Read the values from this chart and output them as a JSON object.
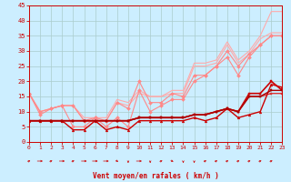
{
  "bg_color": "#cceeff",
  "grid_color": "#aacccc",
  "xlabel": "Vent moyen/en rafales ( km/h )",
  "xlabel_color": "#cc0000",
  "tick_color": "#cc0000",
  "ylim": [
    0,
    45
  ],
  "xlim": [
    0,
    23
  ],
  "yticks": [
    0,
    5,
    10,
    15,
    20,
    25,
    30,
    35,
    40,
    45
  ],
  "xticks": [
    0,
    1,
    2,
    3,
    4,
    5,
    6,
    7,
    8,
    9,
    10,
    11,
    12,
    13,
    14,
    15,
    16,
    17,
    18,
    19,
    20,
    21,
    22,
    23
  ],
  "series": [
    {
      "color": "#ffaaaa",
      "lw": 0.8,
      "marker": null,
      "x": [
        0,
        1,
        2,
        3,
        4,
        5,
        6,
        7,
        8,
        9,
        10,
        11,
        12,
        13,
        14,
        15,
        16,
        17,
        18,
        19,
        20,
        21,
        22,
        23
      ],
      "y": [
        16,
        10,
        11,
        12,
        12,
        8,
        8,
        8,
        14,
        13,
        17,
        15,
        15,
        17,
        17,
        26,
        26,
        27,
        33,
        27,
        30,
        35,
        43,
        43
      ]
    },
    {
      "color": "#ffaaaa",
      "lw": 0.8,
      "marker": null,
      "x": [
        0,
        1,
        2,
        3,
        4,
        5,
        6,
        7,
        8,
        9,
        10,
        11,
        12,
        13,
        14,
        15,
        16,
        17,
        18,
        19,
        20,
        21,
        22,
        23
      ],
      "y": [
        16,
        10,
        11,
        12,
        12,
        7,
        7,
        7,
        13,
        12,
        16,
        15,
        15,
        16,
        16,
        25,
        25,
        26,
        32,
        26,
        29,
        34,
        36,
        36
      ]
    },
    {
      "color": "#ff8888",
      "lw": 0.8,
      "marker": "D",
      "x": [
        0,
        1,
        2,
        3,
        4,
        5,
        6,
        7,
        8,
        9,
        10,
        11,
        12,
        13,
        14,
        15,
        16,
        17,
        18,
        19,
        20,
        21,
        22,
        23
      ],
      "y": [
        16,
        10,
        11,
        12,
        12,
        7,
        8,
        7,
        13,
        11,
        20,
        13,
        13,
        16,
        15,
        22,
        22,
        25,
        30,
        25,
        29,
        32,
        35,
        35
      ]
    },
    {
      "color": "#ff8888",
      "lw": 0.8,
      "marker": "D",
      "x": [
        0,
        1,
        2,
        3,
        4,
        5,
        6,
        7,
        8,
        9,
        10,
        11,
        12,
        13,
        14,
        15,
        16,
        17,
        18,
        19,
        20,
        21,
        22,
        23
      ],
      "y": [
        16,
        9,
        11,
        12,
        5,
        5,
        8,
        5,
        8,
        5,
        17,
        10,
        12,
        14,
        14,
        20,
        22,
        25,
        28,
        22,
        28,
        32,
        35,
        35
      ]
    },
    {
      "color": "#dd3333",
      "lw": 1.0,
      "marker": "s",
      "x": [
        0,
        1,
        2,
        3,
        4,
        5,
        6,
        7,
        8,
        9,
        10,
        11,
        12,
        13,
        14,
        15,
        16,
        17,
        18,
        19,
        20,
        21,
        22,
        23
      ],
      "y": [
        7,
        7,
        7,
        7,
        7,
        7,
        7,
        7,
        7,
        7,
        8,
        8,
        8,
        8,
        8,
        9,
        9,
        10,
        11,
        10,
        15,
        15,
        16,
        16
      ]
    },
    {
      "color": "#cc0000",
      "lw": 1.2,
      "marker": "s",
      "x": [
        0,
        1,
        2,
        3,
        4,
        5,
        6,
        7,
        8,
        9,
        10,
        11,
        12,
        13,
        14,
        15,
        16,
        17,
        18,
        19,
        20,
        21,
        22,
        23
      ],
      "y": [
        7,
        7,
        7,
        7,
        7,
        7,
        7,
        7,
        7,
        7,
        8,
        8,
        8,
        8,
        8,
        9,
        9,
        10,
        11,
        10,
        16,
        16,
        20,
        17
      ]
    },
    {
      "color": "#cc0000",
      "lw": 1.0,
      "marker": "^",
      "x": [
        0,
        1,
        2,
        3,
        4,
        5,
        6,
        7,
        8,
        9,
        10,
        11,
        12,
        13,
        14,
        15,
        16,
        17,
        18,
        19,
        20,
        21,
        22,
        23
      ],
      "y": [
        7,
        7,
        7,
        7,
        4,
        4,
        7,
        4,
        5,
        4,
        7,
        7,
        7,
        7,
        7,
        8,
        7,
        8,
        11,
        8,
        9,
        10,
        19,
        18
      ]
    },
    {
      "color": "#aa0000",
      "lw": 1.0,
      "marker": "s",
      "x": [
        0,
        1,
        2,
        3,
        4,
        5,
        6,
        7,
        8,
        9,
        10,
        11,
        12,
        13,
        14,
        15,
        16,
        17,
        18,
        19,
        20,
        21,
        22,
        23
      ],
      "y": [
        7,
        7,
        7,
        7,
        7,
        7,
        7,
        7,
        7,
        7,
        8,
        8,
        8,
        8,
        8,
        9,
        9,
        10,
        11,
        10,
        15,
        15,
        17,
        17
      ]
    }
  ],
  "arrow_angles": [
    45,
    0,
    45,
    0,
    45,
    0,
    0,
    0,
    315,
    270,
    0,
    270,
    45,
    315,
    270,
    270,
    45,
    45,
    45,
    45,
    45,
    45,
    45
  ]
}
